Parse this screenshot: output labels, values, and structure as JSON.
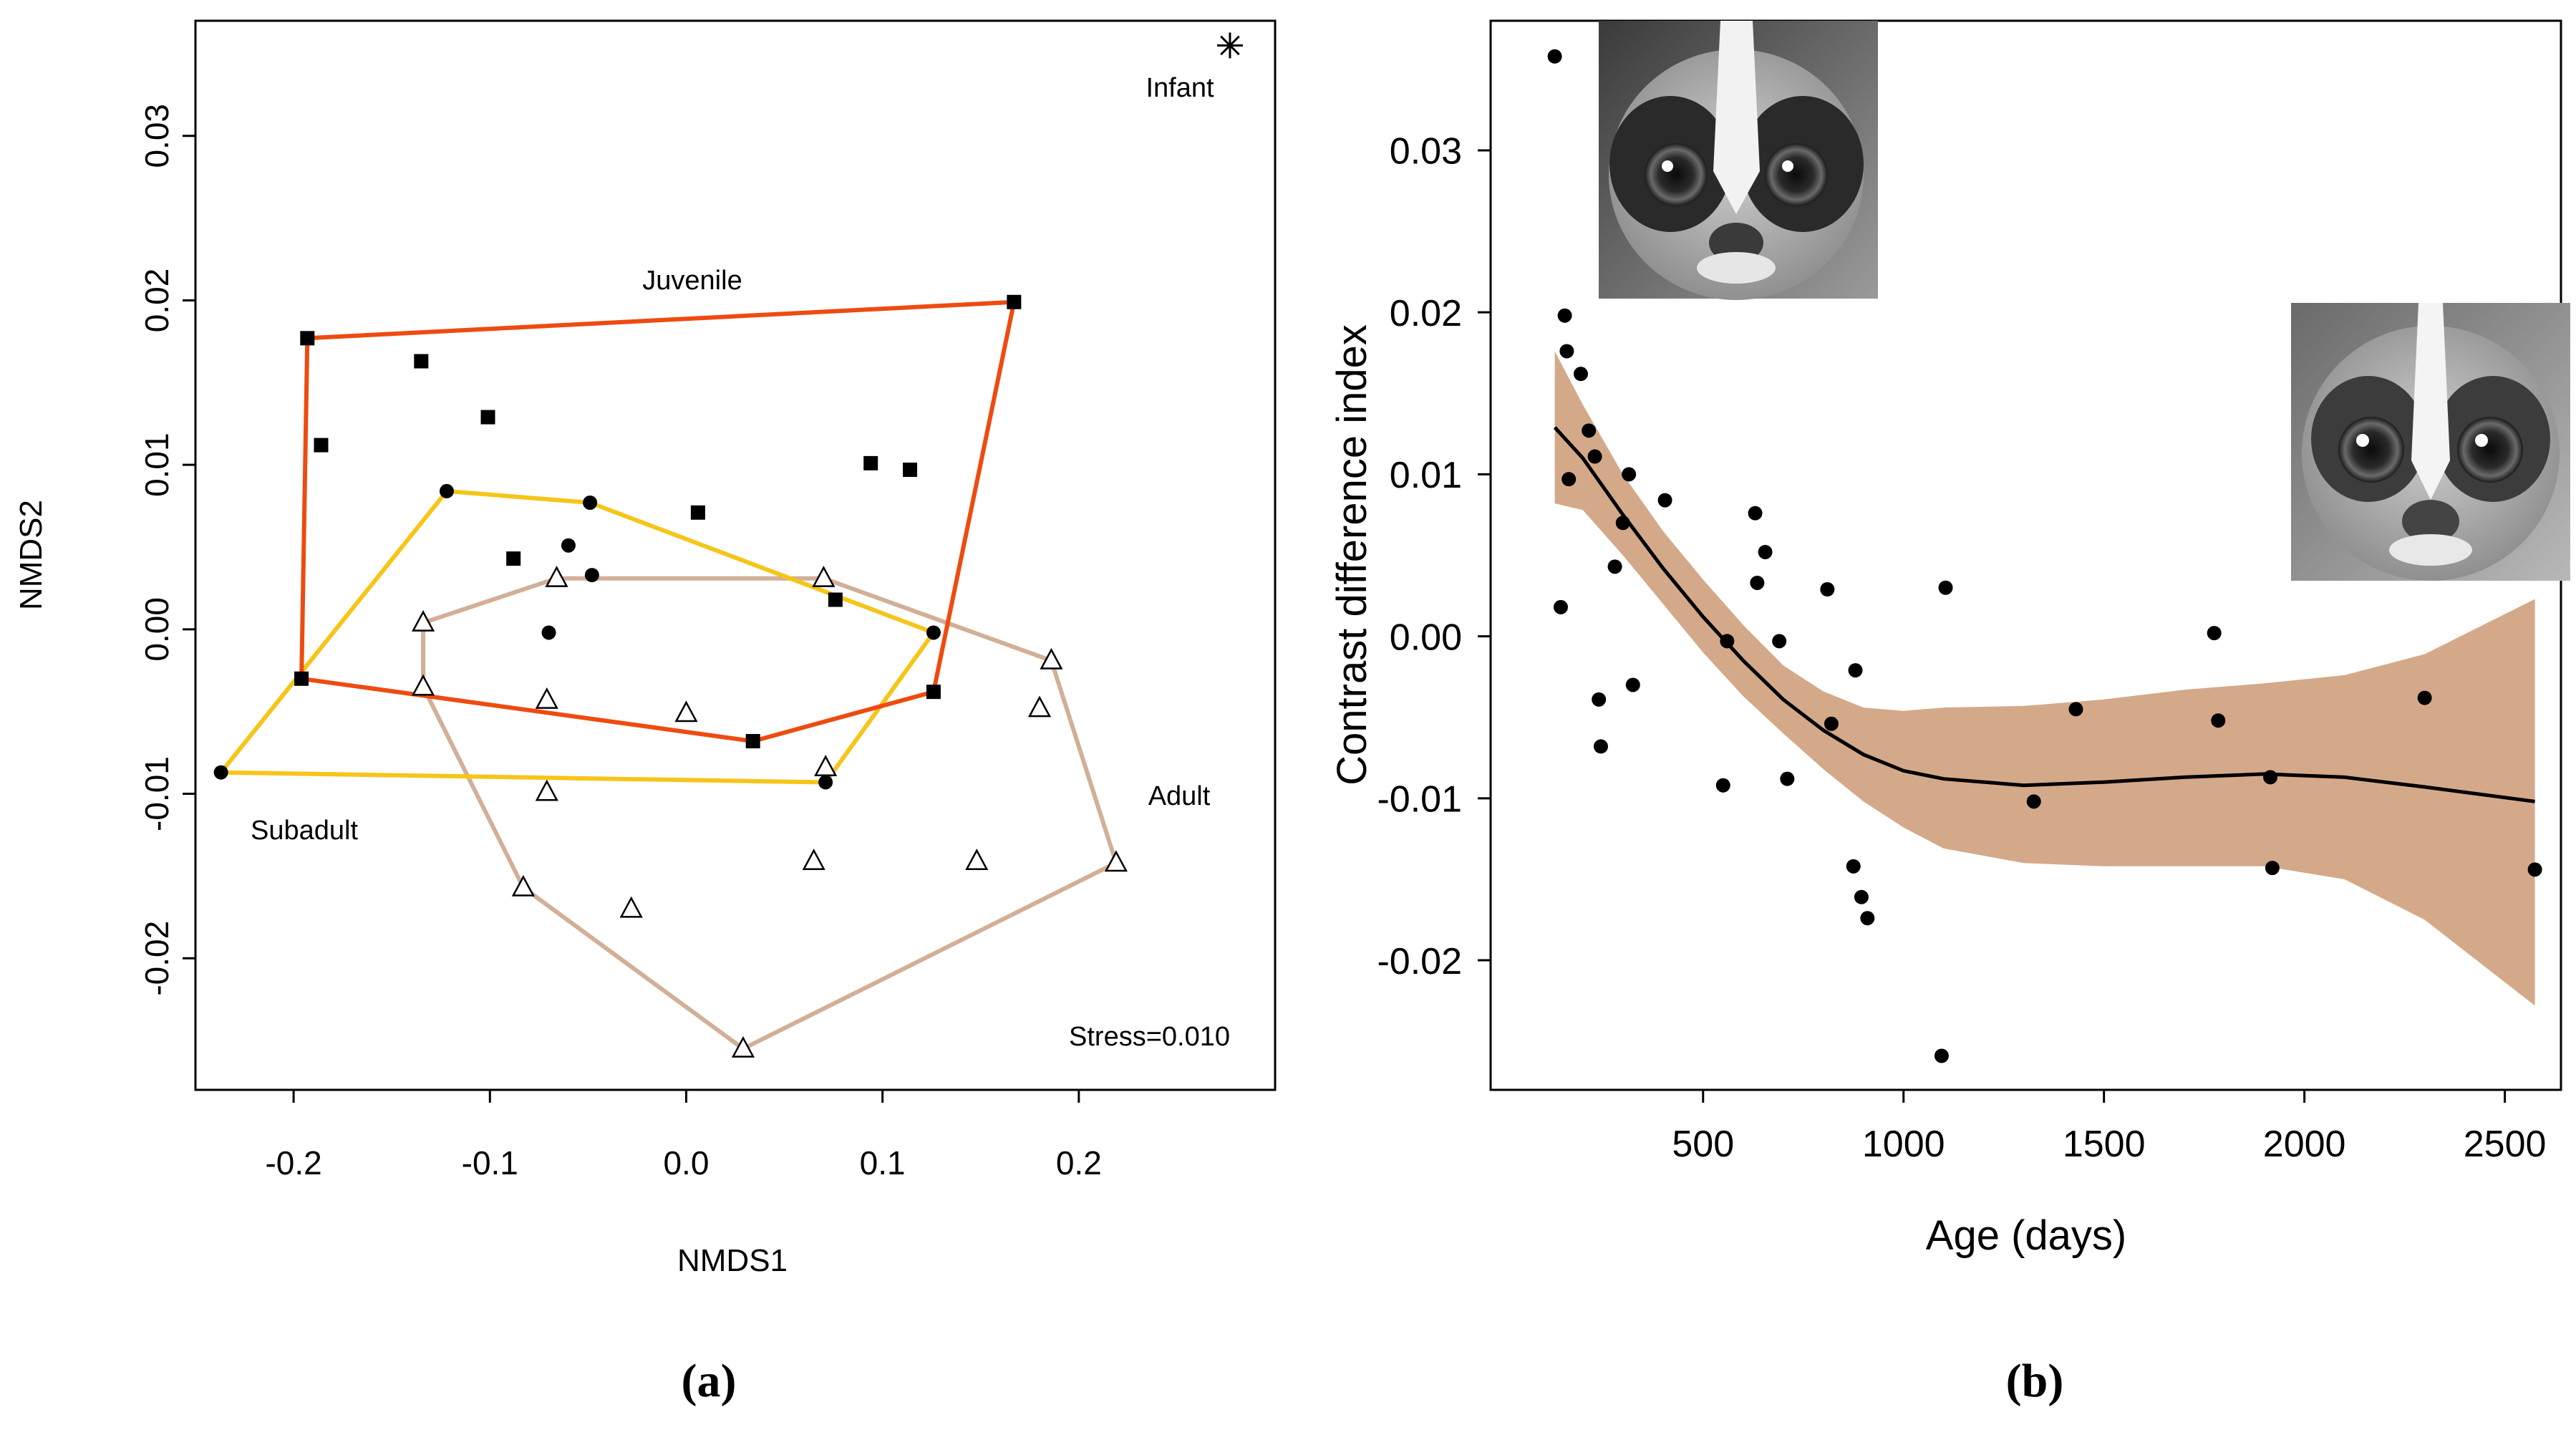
{
  "chart_data": [
    {
      "type": "scatter",
      "panel_label": "(a)",
      "xlabel": "NMDS1",
      "ylabel": "NMDS2",
      "xlim": [
        -0.25,
        0.3
      ],
      "ylim": [
        -0.028,
        0.037
      ],
      "xticks": [
        "-0.2",
        "-0.1",
        "0.0",
        "0.1",
        "0.2"
      ],
      "yticks": [
        "-0.02",
        "-0.01",
        "0.00",
        "0.01",
        "0.02",
        "0.03"
      ],
      "stress_label": "Stress=0.010",
      "series": [
        {
          "name": "Juvenile",
          "marker": "square",
          "hull_color": "#EE4B10",
          "points": [
            [
              -0.193,
              0.0177
            ],
            [
              -0.186,
              0.0112
            ],
            [
              -0.135,
              0.0163
            ],
            [
              -0.101,
              0.0129
            ],
            [
              0.167,
              0.0199
            ],
            [
              0.094,
              0.0101
            ],
            [
              0.114,
              0.0097
            ],
            [
              0.006,
              0.0071
            ],
            [
              -0.088,
              0.0043
            ],
            [
              0.076,
              0.0018
            ],
            [
              0.126,
              -0.0038
            ],
            [
              0.034,
              -0.0068
            ],
            [
              -0.196,
              -0.003
            ]
          ],
          "hull": [
            [
              -0.193,
              0.0177
            ],
            [
              0.167,
              0.0199
            ],
            [
              0.126,
              -0.0038
            ],
            [
              0.034,
              -0.0068
            ],
            [
              -0.196,
              -0.003
            ]
          ]
        },
        {
          "name": "Subadult",
          "marker": "circle",
          "hull_color": "#F6C518",
          "points": [
            [
              -0.122,
              0.0084
            ],
            [
              -0.049,
              0.0077
            ],
            [
              -0.06,
              0.0051
            ],
            [
              -0.048,
              0.0033
            ],
            [
              -0.07,
              -0.0002
            ],
            [
              0.126,
              -0.0002
            ],
            [
              0.071,
              -0.0093
            ],
            [
              -0.237,
              -0.0087
            ]
          ],
          "hull": [
            [
              -0.122,
              0.0084
            ],
            [
              -0.049,
              0.0077
            ],
            [
              0.126,
              -0.0002
            ],
            [
              0.071,
              -0.0093
            ],
            [
              -0.237,
              -0.0087
            ]
          ]
        },
        {
          "name": "Adult",
          "marker": "triangle",
          "hull_color": "#D2AF97",
          "points": [
            [
              -0.066,
              0.0031
            ],
            [
              0.07,
              0.0031
            ],
            [
              -0.134,
              0.0004
            ],
            [
              -0.134,
              -0.0035
            ],
            [
              -0.071,
              -0.0043
            ],
            [
              0.0,
              -0.0051
            ],
            [
              0.186,
              -0.0019
            ],
            [
              0.18,
              -0.0048
            ],
            [
              0.071,
              -0.0084
            ],
            [
              -0.071,
              -0.0099
            ],
            [
              0.065,
              -0.0141
            ],
            [
              0.148,
              -0.0141
            ],
            [
              0.219,
              -0.0142
            ],
            [
              -0.083,
              -0.0157
            ],
            [
              -0.028,
              -0.017
            ],
            [
              0.029,
              -0.0255
            ]
          ],
          "hull": [
            [
              -0.066,
              0.0031
            ],
            [
              0.07,
              0.0031
            ],
            [
              0.186,
              -0.0019
            ],
            [
              0.219,
              -0.0142
            ],
            [
              0.029,
              -0.0255
            ],
            [
              -0.083,
              -0.0157
            ],
            [
              -0.134,
              -0.0035
            ],
            [
              -0.134,
              0.0004
            ]
          ]
        },
        {
          "name": "Infant",
          "marker": "star",
          "points": [
            [
              0.277,
              0.0355
            ]
          ]
        }
      ]
    },
    {
      "type": "scatter",
      "panel_label": "(b)",
      "xlabel": "Age (days)",
      "ylabel": "Contrast difference index",
      "xlim": [
        -30,
        2640
      ],
      "ylim": [
        -0.028,
        0.038
      ],
      "xticks": [
        "500",
        "1000",
        "1500",
        "2000",
        "2500"
      ],
      "yticks": [
        "-0.02",
        "-0.01",
        "0.00",
        "0.01",
        "0.02",
        "0.03"
      ],
      "points": [
        [
          130,
          0.0358
        ],
        [
          145,
          0.0018
        ],
        [
          155,
          0.0198
        ],
        [
          160,
          0.0176
        ],
        [
          165,
          0.0097
        ],
        [
          195,
          0.0162
        ],
        [
          215,
          0.0127
        ],
        [
          230,
          0.0111
        ],
        [
          240,
          -0.0039
        ],
        [
          245,
          -0.0068
        ],
        [
          280,
          0.0043
        ],
        [
          300,
          0.007
        ],
        [
          315,
          0.01
        ],
        [
          325,
          -0.003
        ],
        [
          405,
          0.0084
        ],
        [
          550,
          -0.0092
        ],
        [
          560,
          -0.0003
        ],
        [
          630,
          0.0076
        ],
        [
          635,
          0.0033
        ],
        [
          655,
          0.0052
        ],
        [
          690,
          -0.0003
        ],
        [
          710,
          -0.0088
        ],
        [
          810,
          0.0029
        ],
        [
          820,
          -0.0054
        ],
        [
          875,
          -0.0142
        ],
        [
          880,
          -0.0021
        ],
        [
          895,
          -0.0161
        ],
        [
          910,
          -0.0174
        ],
        [
          1095,
          -0.0259
        ],
        [
          1105,
          0.003
        ],
        [
          1325,
          -0.0102
        ],
        [
          1430,
          -0.0045
        ],
        [
          1775,
          0.0002
        ],
        [
          1785,
          -0.0052
        ],
        [
          1915,
          -0.0087
        ],
        [
          1920,
          -0.0143
        ],
        [
          2300,
          -0.0038
        ],
        [
          2575,
          -0.0144
        ]
      ],
      "fit": {
        "x": [
          130,
          200,
          300,
          400,
          500,
          600,
          700,
          800,
          900,
          1000,
          1100,
          1300,
          1500,
          1700,
          1900,
          2100,
          2300,
          2575
        ],
        "y": [
          0.0129,
          0.011,
          0.0075,
          0.0042,
          0.0012,
          -0.0015,
          -0.0039,
          -0.0058,
          -0.0073,
          -0.0083,
          -0.0088,
          -0.0092,
          -0.009,
          -0.0087,
          -0.0085,
          -0.0087,
          -0.0093,
          -0.0102
        ],
        "upper": [
          0.0176,
          0.0143,
          0.01,
          0.0065,
          0.0035,
          0.0007,
          -0.0018,
          -0.0034,
          -0.0044,
          -0.0046,
          -0.0044,
          -0.0043,
          -0.0039,
          -0.0033,
          -0.0029,
          -0.0024,
          -0.0011,
          0.0023
        ],
        "lower": [
          0.0082,
          0.0078,
          0.005,
          0.002,
          -0.001,
          -0.0037,
          -0.006,
          -0.0082,
          -0.0102,
          -0.0118,
          -0.0131,
          -0.014,
          -0.0142,
          -0.0142,
          -0.0142,
          -0.015,
          -0.0175,
          -0.0228
        ],
        "line_color": "#000000",
        "band_color": "#D4A98A"
      },
      "photos": [
        {
          "name": "slow loris infant face photograph"
        },
        {
          "name": "slow loris adult face photograph"
        }
      ]
    }
  ]
}
